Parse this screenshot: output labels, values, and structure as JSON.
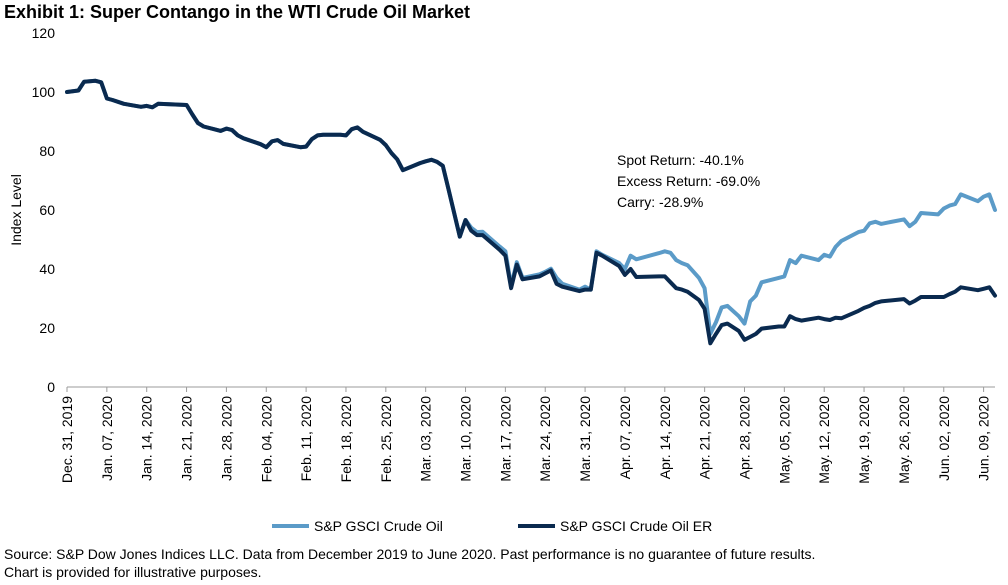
{
  "title": "Exhibit 1: Super Contango in the WTI Crude Oil Market",
  "source_lines": [
    "Source: S&P Dow Jones Indices LLC. Data from December 2019 to June 2020. Past performance is no guarantee of future results.",
    "Chart is provided for illustrative purposes."
  ],
  "chart_data": {
    "type": "line",
    "ylabel": "Index Level",
    "ylim": [
      0,
      120
    ],
    "yticks": [
      0,
      20,
      40,
      60,
      80,
      100,
      120
    ],
    "x_start": "2019-12-31",
    "x_end": "2020-06-11",
    "xticks": [
      {
        "date": "2019-12-31",
        "label": "Dec. 31, 2019"
      },
      {
        "date": "2020-01-07",
        "label": "Jan. 07, 2020"
      },
      {
        "date": "2020-01-14",
        "label": "Jan. 14, 2020"
      },
      {
        "date": "2020-01-21",
        "label": "Jan. 21, 2020"
      },
      {
        "date": "2020-01-28",
        "label": "Jan. 28, 2020"
      },
      {
        "date": "2020-02-04",
        "label": "Feb. 04, 2020"
      },
      {
        "date": "2020-02-11",
        "label": "Feb. 11, 2020"
      },
      {
        "date": "2020-02-18",
        "label": "Feb. 18, 2020"
      },
      {
        "date": "2020-02-25",
        "label": "Feb. 25, 2020"
      },
      {
        "date": "2020-03-03",
        "label": "Mar. 03, 2020"
      },
      {
        "date": "2020-03-10",
        "label": "Mar. 10, 2020"
      },
      {
        "date": "2020-03-17",
        "label": "Mar. 17, 2020"
      },
      {
        "date": "2020-03-24",
        "label": "Mar. 24, 2020"
      },
      {
        "date": "2020-03-31",
        "label": "Mar. 31, 2020"
      },
      {
        "date": "2020-04-07",
        "label": "Apr. 07, 2020"
      },
      {
        "date": "2020-04-14",
        "label": "Apr. 14, 2020"
      },
      {
        "date": "2020-04-21",
        "label": "Apr. 21, 2020"
      },
      {
        "date": "2020-04-28",
        "label": "Apr. 28, 2020"
      },
      {
        "date": "2020-05-05",
        "label": "May. 05, 2020"
      },
      {
        "date": "2020-05-12",
        "label": "May. 12, 2020"
      },
      {
        "date": "2020-05-19",
        "label": "May. 19, 2020"
      },
      {
        "date": "2020-05-26",
        "label": "May. 26, 2020"
      },
      {
        "date": "2020-06-02",
        "label": "Jun. 02, 2020"
      },
      {
        "date": "2020-06-09",
        "label": "Jun. 09, 2020"
      }
    ],
    "annotation": [
      "Spot Return: -40.1%",
      "Excess Return: -69.0%",
      "Carry: -28.9%"
    ],
    "legend_position": "bottom",
    "series": [
      {
        "name": "S&P GSCI Crude Oil",
        "color": "#5b9bc8",
        "points": [
          [
            "2019-12-31",
            100.0
          ],
          [
            "2020-01-02",
            100.5
          ],
          [
            "2020-01-03",
            103.5
          ],
          [
            "2020-01-05",
            103.8
          ],
          [
            "2020-01-06",
            103.3
          ],
          [
            "2020-01-07",
            97.8
          ],
          [
            "2020-01-08",
            97.3
          ],
          [
            "2020-01-10",
            96.0
          ],
          [
            "2020-01-13",
            95.0
          ],
          [
            "2020-01-14",
            95.3
          ],
          [
            "2020-01-15",
            94.8
          ],
          [
            "2020-01-16",
            96.0
          ],
          [
            "2020-01-21",
            95.6
          ],
          [
            "2020-01-22",
            92.4
          ],
          [
            "2020-01-23",
            89.5
          ],
          [
            "2020-01-24",
            88.3
          ],
          [
            "2020-01-27",
            86.8
          ],
          [
            "2020-01-28",
            87.6
          ],
          [
            "2020-01-29",
            87.1
          ],
          [
            "2020-01-30",
            85.3
          ],
          [
            "2020-01-31",
            84.3
          ],
          [
            "2020-02-03",
            82.3
          ],
          [
            "2020-02-04",
            81.3
          ],
          [
            "2020-02-05",
            83.3
          ],
          [
            "2020-02-06",
            83.7
          ],
          [
            "2020-02-07",
            82.4
          ],
          [
            "2020-02-10",
            81.3
          ],
          [
            "2020-02-11",
            81.5
          ],
          [
            "2020-02-12",
            84.0
          ],
          [
            "2020-02-13",
            85.3
          ],
          [
            "2020-02-14",
            85.5
          ],
          [
            "2020-02-17",
            85.5
          ],
          [
            "2020-02-18",
            85.3
          ],
          [
            "2020-02-19",
            87.4
          ],
          [
            "2020-02-20",
            88.0
          ],
          [
            "2020-02-21",
            86.5
          ],
          [
            "2020-02-24",
            83.8
          ],
          [
            "2020-02-25",
            82.0
          ],
          [
            "2020-02-26",
            79.3
          ],
          [
            "2020-02-27",
            77.2
          ],
          [
            "2020-02-28",
            73.5
          ],
          [
            "2020-03-02",
            75.9
          ],
          [
            "2020-03-03",
            76.5
          ],
          [
            "2020-03-04",
            77.0
          ],
          [
            "2020-03-05",
            76.3
          ],
          [
            "2020-03-06",
            75.0
          ],
          [
            "2020-03-07",
            67.2
          ],
          [
            "2020-03-09",
            51.0
          ],
          [
            "2020-03-10",
            56.6
          ],
          [
            "2020-03-11",
            54.0
          ],
          [
            "2020-03-12",
            52.5
          ],
          [
            "2020-03-13",
            52.6
          ],
          [
            "2020-03-16",
            47.6
          ],
          [
            "2020-03-17",
            46.0
          ],
          [
            "2020-03-18",
            34.3
          ],
          [
            "2020-03-19",
            42.3
          ],
          [
            "2020-03-20",
            37.0
          ],
          [
            "2020-03-23",
            38.2
          ],
          [
            "2020-03-24",
            39.0
          ],
          [
            "2020-03-25",
            40.1
          ],
          [
            "2020-03-26",
            37.0
          ],
          [
            "2020-03-27",
            35.0
          ],
          [
            "2020-03-30",
            33.0
          ],
          [
            "2020-03-31",
            34.0
          ],
          [
            "2020-04-01",
            33.0
          ],
          [
            "2020-04-02",
            46.0
          ],
          [
            "2020-04-03",
            44.8
          ],
          [
            "2020-04-06",
            42.0
          ],
          [
            "2020-04-07",
            40.0
          ],
          [
            "2020-04-08",
            44.5
          ],
          [
            "2020-04-09",
            43.3
          ],
          [
            "2020-04-13",
            45.4
          ],
          [
            "2020-04-14",
            46.0
          ],
          [
            "2020-04-15",
            45.5
          ],
          [
            "2020-04-16",
            43.0
          ],
          [
            "2020-04-17",
            42.0
          ],
          [
            "2020-04-18",
            41.3
          ],
          [
            "2020-04-20",
            37.0
          ],
          [
            "2020-04-21",
            33.5
          ],
          [
            "2020-04-22",
            18.0
          ],
          [
            "2020-04-23",
            22.0
          ],
          [
            "2020-04-24",
            27.0
          ],
          [
            "2020-04-25",
            27.5
          ],
          [
            "2020-04-27",
            24.0
          ],
          [
            "2020-04-28",
            21.5
          ],
          [
            "2020-04-29",
            29.0
          ],
          [
            "2020-04-30",
            31.0
          ],
          [
            "2020-05-01",
            35.5
          ],
          [
            "2020-05-04",
            37.0
          ],
          [
            "2020-05-05",
            37.5
          ],
          [
            "2020-05-06",
            43.0
          ],
          [
            "2020-05-07",
            42.0
          ],
          [
            "2020-05-08",
            44.5
          ],
          [
            "2020-05-11",
            43.0
          ],
          [
            "2020-05-12",
            44.8
          ],
          [
            "2020-05-13",
            44.2
          ],
          [
            "2020-05-14",
            47.5
          ],
          [
            "2020-05-15",
            49.5
          ],
          [
            "2020-05-18",
            52.5
          ],
          [
            "2020-05-19",
            53.0
          ],
          [
            "2020-05-20",
            55.5
          ],
          [
            "2020-05-21",
            56.0
          ],
          [
            "2020-05-22",
            55.3
          ],
          [
            "2020-05-26",
            56.8
          ],
          [
            "2020-05-27",
            54.5
          ],
          [
            "2020-05-28",
            56.0
          ],
          [
            "2020-05-29",
            59.0
          ],
          [
            "2020-06-01",
            58.5
          ],
          [
            "2020-06-02",
            60.5
          ],
          [
            "2020-06-03",
            61.5
          ],
          [
            "2020-06-04",
            62.0
          ],
          [
            "2020-06-05",
            65.3
          ],
          [
            "2020-06-08",
            63.0
          ],
          [
            "2020-06-09",
            64.5
          ],
          [
            "2020-06-10",
            65.3
          ],
          [
            "2020-06-11",
            60.0
          ]
        ]
      },
      {
        "name": "S&P GSCI Crude Oil ER",
        "color": "#0a2a4f",
        "points": [
          [
            "2019-12-31",
            100.0
          ],
          [
            "2020-01-02",
            100.5
          ],
          [
            "2020-01-03",
            103.5
          ],
          [
            "2020-01-05",
            103.8
          ],
          [
            "2020-01-06",
            103.3
          ],
          [
            "2020-01-07",
            97.8
          ],
          [
            "2020-01-08",
            97.3
          ],
          [
            "2020-01-10",
            96.0
          ],
          [
            "2020-01-13",
            95.0
          ],
          [
            "2020-01-14",
            95.3
          ],
          [
            "2020-01-15",
            94.8
          ],
          [
            "2020-01-16",
            96.0
          ],
          [
            "2020-01-21",
            95.6
          ],
          [
            "2020-01-22",
            92.4
          ],
          [
            "2020-01-23",
            89.5
          ],
          [
            "2020-01-24",
            88.3
          ],
          [
            "2020-01-27",
            86.8
          ],
          [
            "2020-01-28",
            87.6
          ],
          [
            "2020-01-29",
            87.1
          ],
          [
            "2020-01-30",
            85.3
          ],
          [
            "2020-01-31",
            84.3
          ],
          [
            "2020-02-03",
            82.3
          ],
          [
            "2020-02-04",
            81.3
          ],
          [
            "2020-02-05",
            83.3
          ],
          [
            "2020-02-06",
            83.7
          ],
          [
            "2020-02-07",
            82.4
          ],
          [
            "2020-02-10",
            81.3
          ],
          [
            "2020-02-11",
            81.5
          ],
          [
            "2020-02-12",
            84.0
          ],
          [
            "2020-02-13",
            85.3
          ],
          [
            "2020-02-14",
            85.5
          ],
          [
            "2020-02-17",
            85.5
          ],
          [
            "2020-02-18",
            85.3
          ],
          [
            "2020-02-19",
            87.4
          ],
          [
            "2020-02-20",
            88.0
          ],
          [
            "2020-02-21",
            86.5
          ],
          [
            "2020-02-24",
            83.8
          ],
          [
            "2020-02-25",
            82.0
          ],
          [
            "2020-02-26",
            79.3
          ],
          [
            "2020-02-27",
            77.2
          ],
          [
            "2020-02-28",
            73.5
          ],
          [
            "2020-03-02",
            75.9
          ],
          [
            "2020-03-03",
            76.5
          ],
          [
            "2020-03-04",
            77.0
          ],
          [
            "2020-03-05",
            76.3
          ],
          [
            "2020-03-06",
            75.0
          ],
          [
            "2020-03-07",
            67.2
          ],
          [
            "2020-03-09",
            51.0
          ],
          [
            "2020-03-10",
            56.6
          ],
          [
            "2020-03-11",
            53.0
          ],
          [
            "2020-03-12",
            51.5
          ],
          [
            "2020-03-13",
            51.5
          ],
          [
            "2020-03-16",
            46.5
          ],
          [
            "2020-03-17",
            44.5
          ],
          [
            "2020-03-18",
            33.5
          ],
          [
            "2020-03-19",
            41.5
          ],
          [
            "2020-03-20",
            36.5
          ],
          [
            "2020-03-23",
            37.5
          ],
          [
            "2020-03-24",
            38.5
          ],
          [
            "2020-03-25",
            39.5
          ],
          [
            "2020-03-26",
            35.0
          ],
          [
            "2020-03-27",
            34.0
          ],
          [
            "2020-03-30",
            32.5
          ],
          [
            "2020-03-31",
            33.0
          ],
          [
            "2020-04-01",
            33.0
          ],
          [
            "2020-04-02",
            45.5
          ],
          [
            "2020-04-03",
            44.5
          ],
          [
            "2020-04-06",
            41.0
          ],
          [
            "2020-04-07",
            38.0
          ],
          [
            "2020-04-08",
            40.0
          ],
          [
            "2020-04-09",
            37.3
          ],
          [
            "2020-04-13",
            37.5
          ],
          [
            "2020-04-14",
            37.5
          ],
          [
            "2020-04-15",
            35.5
          ],
          [
            "2020-04-16",
            33.5
          ],
          [
            "2020-04-17",
            33.0
          ],
          [
            "2020-04-18",
            32.3
          ],
          [
            "2020-04-20",
            29.5
          ],
          [
            "2020-04-21",
            26.5
          ],
          [
            "2020-04-22",
            14.8
          ],
          [
            "2020-04-23",
            18.0
          ],
          [
            "2020-04-24",
            21.0
          ],
          [
            "2020-04-25",
            21.5
          ],
          [
            "2020-04-27",
            19.0
          ],
          [
            "2020-04-28",
            16.0
          ],
          [
            "2020-04-29",
            17.0
          ],
          [
            "2020-04-30",
            18.0
          ],
          [
            "2020-05-01",
            19.8
          ],
          [
            "2020-05-04",
            20.5
          ],
          [
            "2020-05-05",
            20.5
          ],
          [
            "2020-05-06",
            24.0
          ],
          [
            "2020-05-07",
            23.0
          ],
          [
            "2020-05-08",
            22.5
          ],
          [
            "2020-05-11",
            23.5
          ],
          [
            "2020-05-12",
            23.0
          ],
          [
            "2020-05-13",
            22.7
          ],
          [
            "2020-05-14",
            23.5
          ],
          [
            "2020-05-15",
            23.3
          ],
          [
            "2020-05-18",
            25.8
          ],
          [
            "2020-05-19",
            26.8
          ],
          [
            "2020-05-20",
            27.5
          ],
          [
            "2020-05-21",
            28.5
          ],
          [
            "2020-05-22",
            29.0
          ],
          [
            "2020-05-26",
            29.8
          ],
          [
            "2020-05-27",
            28.3
          ],
          [
            "2020-05-28",
            29.3
          ],
          [
            "2020-05-29",
            30.5
          ],
          [
            "2020-06-01",
            30.5
          ],
          [
            "2020-06-02",
            30.5
          ],
          [
            "2020-06-03",
            31.5
          ],
          [
            "2020-06-04",
            32.3
          ],
          [
            "2020-06-05",
            33.8
          ],
          [
            "2020-06-08",
            32.8
          ],
          [
            "2020-06-09",
            33.3
          ],
          [
            "2020-06-10",
            33.8
          ],
          [
            "2020-06-11",
            31.0
          ]
        ]
      }
    ]
  }
}
